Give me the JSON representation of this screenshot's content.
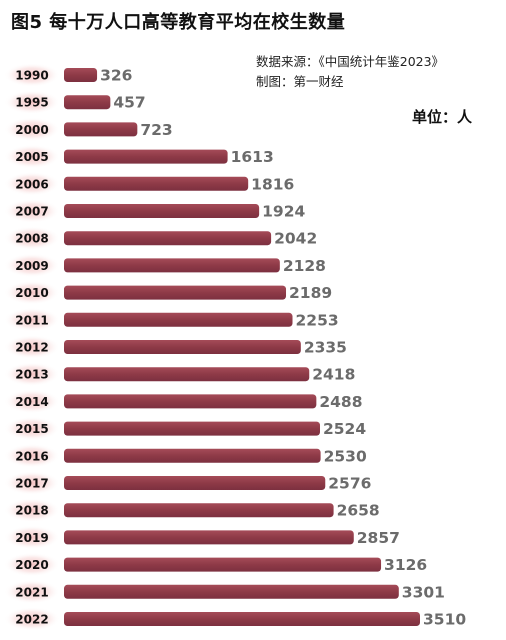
{
  "header": {
    "title": "图5 每十万人口高等教育平均在校生数量",
    "source_line1": "数据来源：《中国统计年鉴2023》",
    "source_line2": "制图：第一财经",
    "unit": "单位：人"
  },
  "colors": {
    "bar": "#8e3a47",
    "bar_highlight": "#a54b58",
    "value_text": "#6b6b6b",
    "year_glow": "#f2b8b8"
  },
  "chart_data": {
    "type": "bar",
    "orientation": "horizontal",
    "categories": [
      "1990",
      "1995",
      "2000",
      "2005",
      "2006",
      "2007",
      "2008",
      "2009",
      "2010",
      "2011",
      "2012",
      "2013",
      "2014",
      "2015",
      "2016",
      "2017",
      "2018",
      "2019",
      "2020",
      "2021",
      "2022"
    ],
    "values": [
      326,
      457,
      723,
      1613,
      1816,
      1924,
      2042,
      2128,
      2189,
      2253,
      2335,
      2418,
      2488,
      2524,
      2530,
      2576,
      2658,
      2857,
      3126,
      3301,
      3510
    ],
    "title": "图5 每十万人口高等教育平均在校生数量",
    "unit": "单位：人",
    "xlim": [
      0,
      3510
    ],
    "grid": false,
    "legend": "none"
  }
}
